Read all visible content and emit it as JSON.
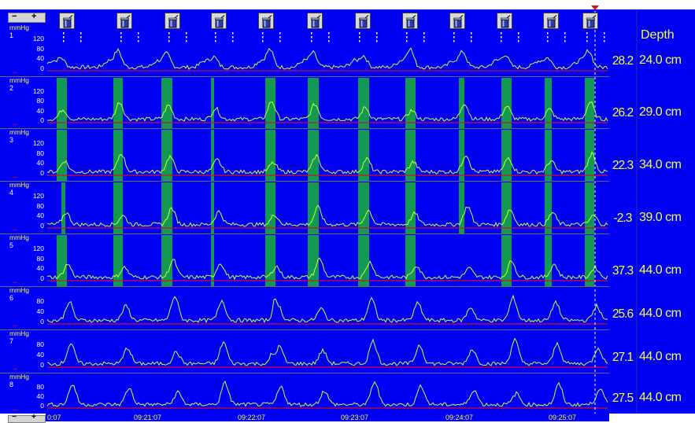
{
  "controls": {
    "minus": "−",
    "plus": "+"
  },
  "channels": [
    {
      "num": "1",
      "unit": "mmHg",
      "ticks": [
        "120",
        "80",
        "40",
        "0"
      ],
      "value": "28.2",
      "depth": "24.0 cm"
    },
    {
      "num": "2",
      "unit": "mmHg",
      "ticks": [
        "120",
        "80",
        "40",
        "0"
      ],
      "value": "26.2",
      "depth": "29.0 cm"
    },
    {
      "num": "3",
      "unit": "mmHg",
      "ticks": [
        "120",
        "80",
        "40",
        "0"
      ],
      "value": "22.3",
      "depth": "34.0 cm"
    },
    {
      "num": "4",
      "unit": "mmHg",
      "ticks": [
        "120",
        "80",
        "40",
        "0"
      ],
      "value": "-2.3",
      "depth": "39.0 cm"
    },
    {
      "num": "5",
      "unit": "mmHg",
      "ticks": [
        "120",
        "80",
        "40",
        "0"
      ],
      "value": "37.3",
      "depth": "44.0 cm"
    },
    {
      "num": "6",
      "unit": "mmHg",
      "ticks": [
        "80",
        "40",
        "0"
      ],
      "value": "25.6",
      "depth": "44.0 cm"
    },
    {
      "num": "7",
      "unit": "mmHg",
      "ticks": [
        "80",
        "40",
        "0"
      ],
      "value": "27.1",
      "depth": "44.0 cm"
    },
    {
      "num": "8",
      "unit": "mmHg",
      "ticks": [
        "80",
        "40",
        "0"
      ],
      "value": "27.5",
      "depth": "44.0 cm"
    }
  ],
  "depth_title": "Depth",
  "time_labels": [
    "0:07",
    "09:21:07",
    "09:22:07",
    "09:23:07",
    "09:24:07",
    "09:25:07"
  ],
  "colors": {
    "background": "#0000f4",
    "trace": "#c8ff3c",
    "baseline": "#d0102c",
    "swallow_band": "#149a50",
    "text": "#f4ff3c",
    "cursor": "#ffffff"
  },
  "icons": {
    "swallow_marker": "cup-with-straw-icon",
    "arrow": "baseline-arrow-icon"
  },
  "chart_data": {
    "type": "line",
    "title": "",
    "xlabel": "",
    "ylabel": "mmHg",
    "x_ticks": [
      "0:07",
      "09:21:07",
      "09:22:07",
      "09:23:07",
      "09:24:07",
      "09:25:07"
    ],
    "swallow_markers_count": 12,
    "series": [
      {
        "name": "1",
        "ylim": [
          0,
          120
        ],
        "current": 28.2,
        "depth_cm": 24.0
      },
      {
        "name": "2",
        "ylim": [
          0,
          120
        ],
        "current": 26.2,
        "depth_cm": 29.0
      },
      {
        "name": "3",
        "ylim": [
          0,
          120
        ],
        "current": 22.3,
        "depth_cm": 34.0
      },
      {
        "name": "4",
        "ylim": [
          0,
          120
        ],
        "current": -2.3,
        "depth_cm": 39.0
      },
      {
        "name": "5",
        "ylim": [
          0,
          120
        ],
        "current": 37.3,
        "depth_cm": 44.0
      },
      {
        "name": "6",
        "ylim": [
          0,
          80
        ],
        "current": 25.6,
        "depth_cm": 44.0
      },
      {
        "name": "7",
        "ylim": [
          0,
          80
        ],
        "current": 27.1,
        "depth_cm": 44.0
      },
      {
        "name": "8",
        "ylim": [
          0,
          80
        ],
        "current": 27.5,
        "depth_cm": 44.0
      }
    ]
  }
}
